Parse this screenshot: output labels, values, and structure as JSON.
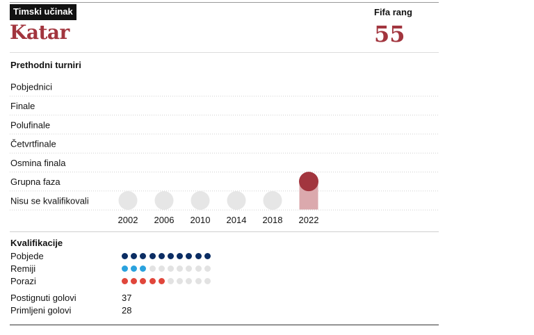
{
  "header": {
    "tag": "Timski učinak",
    "team": "Katar",
    "rank_label": "Fifa rang",
    "rank_value": "55"
  },
  "tournaments": {
    "title": "Prethodni turniri"
  },
  "chart_data": {
    "type": "scatter",
    "title": "",
    "categories": [
      "2002",
      "2006",
      "2010",
      "2014",
      "2018",
      "2022"
    ],
    "stages": [
      "Pobjednici",
      "Finale",
      "Polufinale",
      "Četvrtfinale",
      "Osmina finala",
      "Grupna faza",
      "Nisu se kvalificirali"
    ],
    "stages_display": [
      "Pobjednici",
      "Finale",
      "Polufinale",
      "Četvrtfinale",
      "Osmina finala",
      "Grupna faza",
      "Nisu se kvalifikovali"
    ],
    "results": [
      {
        "year": "2002",
        "stage": "Nisu se kvalifikovali"
      },
      {
        "year": "2006",
        "stage": "Nisu se kvalifikovali"
      },
      {
        "year": "2010",
        "stage": "Nisu se kvalifikovali"
      },
      {
        "year": "2014",
        "stage": "Nisu se kvalifikovali"
      },
      {
        "year": "2018",
        "stage": "Nisu se kvalifikovali"
      },
      {
        "year": "2022",
        "stage": "Grupna faza"
      }
    ],
    "colors": {
      "highlight": "#a2353e",
      "highlight_bar": "#dba9ad",
      "empty": "#e6e6e6"
    }
  },
  "qualification": {
    "title": "Kvalifikacije",
    "total": 10,
    "rows": [
      {
        "label": "Pobjede",
        "count": 10,
        "color": "#0b2d63"
      },
      {
        "label": "Remiji",
        "count": 3,
        "color": "#2aa2de"
      },
      {
        "label": "Porazi",
        "count": 5,
        "color": "#e0463b"
      }
    ],
    "empty_color": "#e2e2e2"
  },
  "goals": [
    {
      "label": "Postignuti golovi",
      "value": "37"
    },
    {
      "label": "Primljeni golovi",
      "value": "28"
    }
  ]
}
